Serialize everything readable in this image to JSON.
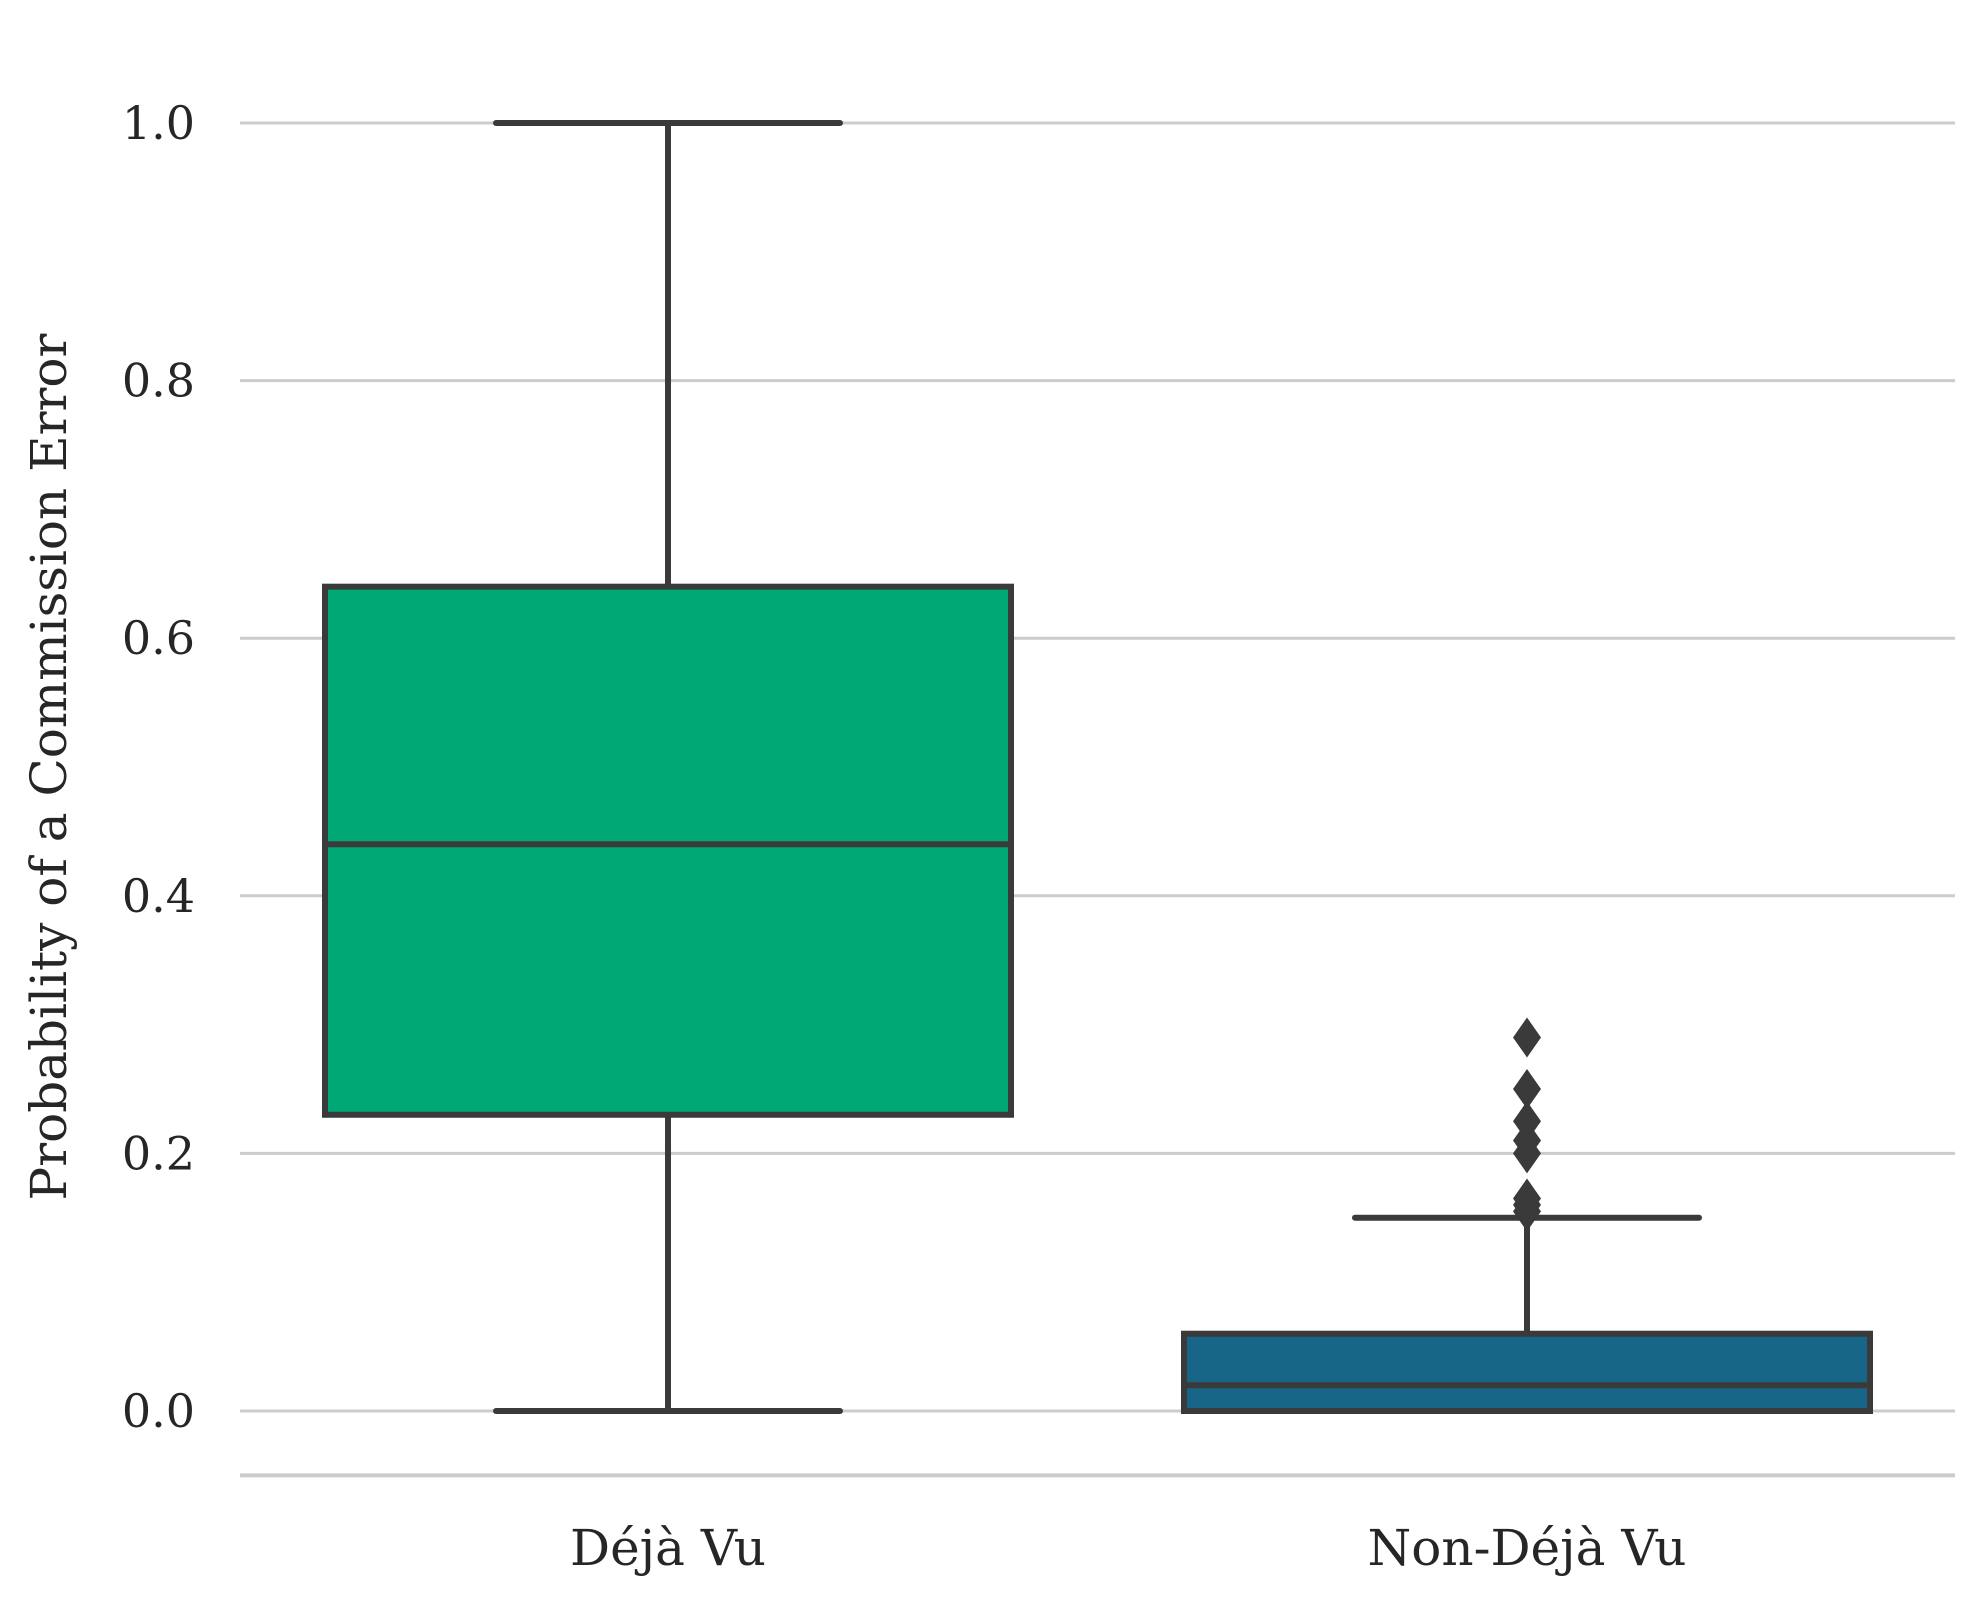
{
  "chart_data": {
    "type": "box",
    "ylabel": "Probability of a Commission Error",
    "xlabel": "",
    "ylim": [
      -0.05,
      1.05
    ],
    "yticks": [
      {
        "value": 0.0,
        "label": "0.0"
      },
      {
        "value": 0.2,
        "label": "0.2"
      },
      {
        "value": 0.4,
        "label": "0.4"
      },
      {
        "value": 0.6,
        "label": "0.6"
      },
      {
        "value": 0.8,
        "label": "0.8"
      },
      {
        "value": 1.0,
        "label": "1.0"
      }
    ],
    "grid": true,
    "categories": [
      "Déjà Vu",
      "Non-Déjà Vu"
    ],
    "boxes": [
      {
        "category": "Déjà Vu",
        "whisker_low": 0.0,
        "q1": 0.23,
        "median": 0.44,
        "q3": 0.64,
        "whisker_high": 1.0,
        "outliers": [],
        "color": "#00a875"
      },
      {
        "category": "Non-Déjà Vu",
        "whisker_low": 0.0,
        "q1": 0.0,
        "median": 0.02,
        "q3": 0.06,
        "whisker_high": 0.15,
        "outliers": [
          0.155,
          0.16,
          0.165,
          0.2,
          0.21,
          0.225,
          0.25,
          0.29
        ],
        "color": "#176687"
      }
    ],
    "colors": {
      "line": "#3a3a3a",
      "grid": "#cccccc"
    }
  }
}
